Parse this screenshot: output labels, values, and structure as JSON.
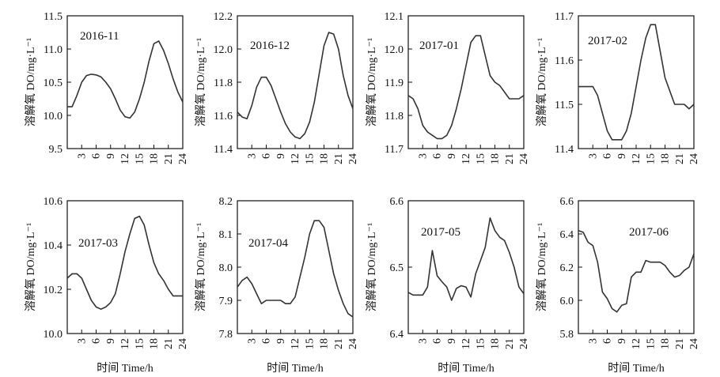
{
  "chart_data": [
    {
      "type": "line",
      "title": "2016-11",
      "ylabel": "溶解氧 DO/mg·L⁻¹",
      "xlabel": "",
      "xlim": [
        0,
        24
      ],
      "ylim": [
        9.5,
        11.5
      ],
      "xticks": [
        "3",
        "6",
        "9",
        "12",
        "15",
        "18",
        "21",
        "24"
      ],
      "yticks": [
        "9.5",
        "10.0",
        "10.5",
        "11.0",
        "11.5"
      ],
      "series": [
        {
          "x": [
            0,
            1,
            2,
            3,
            4,
            5,
            6,
            7,
            8,
            9,
            10,
            11,
            12,
            13,
            14,
            15,
            16,
            17,
            18,
            19,
            20,
            21,
            22,
            23,
            24
          ],
          "values": [
            10.13,
            10.13,
            10.3,
            10.5,
            10.6,
            10.62,
            10.61,
            10.58,
            10.5,
            10.4,
            10.25,
            10.08,
            9.98,
            9.96,
            10.05,
            10.25,
            10.5,
            10.82,
            11.08,
            11.12,
            10.98,
            10.78,
            10.55,
            10.35,
            10.2
          ]
        }
      ]
    },
    {
      "type": "line",
      "title": "2016-12",
      "ylabel": "溶解氧 DO/mg·L⁻¹",
      "xlabel": "",
      "xlim": [
        0,
        24
      ],
      "ylim": [
        11.4,
        12.2
      ],
      "xticks": [
        "3",
        "6",
        "9",
        "12",
        "15",
        "18",
        "21",
        "24"
      ],
      "yticks": [
        "11.4",
        "11.6",
        "11.8",
        "12.0",
        "12.2"
      ],
      "series": [
        {
          "x": [
            0,
            1,
            2,
            3,
            4,
            5,
            6,
            7,
            8,
            9,
            10,
            11,
            12,
            13,
            14,
            15,
            16,
            17,
            18,
            19,
            20,
            21,
            22,
            23,
            24
          ],
          "values": [
            11.62,
            11.59,
            11.58,
            11.66,
            11.77,
            11.83,
            11.83,
            11.78,
            11.7,
            11.62,
            11.55,
            11.5,
            11.47,
            11.46,
            11.49,
            11.56,
            11.68,
            11.85,
            12.02,
            12.1,
            12.09,
            12.0,
            11.84,
            11.72,
            11.64
          ]
        }
      ]
    },
    {
      "type": "line",
      "title": "2017-01",
      "ylabel": "溶解氧 DO/mg·L⁻¹",
      "xlabel": "",
      "xlim": [
        0,
        24
      ],
      "ylim": [
        11.7,
        12.1
      ],
      "xticks": [
        "3",
        "6",
        "9",
        "12",
        "15",
        "18",
        "21",
        "24"
      ],
      "yticks": [
        "11.7",
        "11.8",
        "11.9",
        "12.0",
        "12.1"
      ],
      "series": [
        {
          "x": [
            0,
            1,
            2,
            3,
            4,
            5,
            6,
            7,
            8,
            9,
            10,
            11,
            12,
            13,
            14,
            15,
            16,
            17,
            18,
            19,
            20,
            21,
            22,
            23,
            24
          ],
          "values": [
            11.86,
            11.85,
            11.82,
            11.77,
            11.75,
            11.74,
            11.73,
            11.73,
            11.74,
            11.77,
            11.82,
            11.88,
            11.95,
            12.02,
            12.04,
            12.04,
            11.98,
            11.92,
            11.9,
            11.89,
            11.87,
            11.85,
            11.85,
            11.85,
            11.86
          ]
        }
      ]
    },
    {
      "type": "line",
      "title": "2017-02",
      "ylabel": "溶解氧 DO/mg·L⁻¹",
      "xlabel": "",
      "xlim": [
        0,
        24
      ],
      "ylim": [
        11.4,
        11.7
      ],
      "xticks": [
        "3",
        "6",
        "9",
        "12",
        "15",
        "18",
        "21",
        "24"
      ],
      "yticks": [
        "11.4",
        "11.5",
        "11.6",
        "11.7"
      ],
      "series": [
        {
          "x": [
            0,
            1,
            2,
            3,
            4,
            5,
            6,
            7,
            8,
            9,
            10,
            11,
            12,
            13,
            14,
            15,
            16,
            17,
            18,
            19,
            20,
            21,
            22,
            23,
            24
          ],
          "values": [
            11.54,
            11.54,
            11.54,
            11.54,
            11.52,
            11.48,
            11.44,
            11.42,
            11.42,
            11.42,
            11.44,
            11.48,
            11.54,
            11.6,
            11.65,
            11.68,
            11.68,
            11.62,
            11.56,
            11.53,
            11.5,
            11.5,
            11.5,
            11.49,
            11.5
          ]
        }
      ]
    },
    {
      "type": "line",
      "title": "2017-03",
      "ylabel": "溶解氧 DO/mg·L⁻¹",
      "xlabel": "时间 Time/h",
      "xlim": [
        0,
        24
      ],
      "ylim": [
        10.0,
        10.6
      ],
      "xticks": [
        "3",
        "6",
        "9",
        "12",
        "15",
        "18",
        "21",
        "24"
      ],
      "yticks": [
        "10.0",
        "10.2",
        "10.4",
        "10.6"
      ],
      "series": [
        {
          "x": [
            0,
            1,
            2,
            3,
            4,
            5,
            6,
            7,
            8,
            9,
            10,
            11,
            12,
            13,
            14,
            15,
            16,
            17,
            18,
            19,
            20,
            21,
            22,
            23,
            24
          ],
          "values": [
            10.25,
            10.27,
            10.27,
            10.25,
            10.2,
            10.15,
            10.12,
            10.11,
            10.12,
            10.14,
            10.18,
            10.27,
            10.37,
            10.45,
            10.52,
            10.53,
            10.49,
            10.4,
            10.32,
            10.27,
            10.24,
            10.2,
            10.17,
            10.17,
            10.17
          ]
        }
      ]
    },
    {
      "type": "line",
      "title": "2017-04",
      "ylabel": "溶解氧 DO/mg·L⁻¹",
      "xlabel": "时间 Time/h",
      "xlim": [
        0,
        24
      ],
      "ylim": [
        7.8,
        8.2
      ],
      "xticks": [
        "3",
        "6",
        "9",
        "12",
        "15",
        "18",
        "21",
        "24"
      ],
      "yticks": [
        "7.8",
        "7.9",
        "8.0",
        "8.1",
        "8.2"
      ],
      "series": [
        {
          "x": [
            0,
            1,
            2,
            3,
            4,
            5,
            6,
            7,
            8,
            9,
            10,
            11,
            12,
            13,
            14,
            15,
            16,
            17,
            18,
            19,
            20,
            21,
            22,
            23,
            24
          ],
          "values": [
            7.94,
            7.96,
            7.97,
            7.95,
            7.92,
            7.89,
            7.9,
            7.9,
            7.9,
            7.9,
            7.89,
            7.89,
            7.91,
            7.97,
            8.03,
            8.1,
            8.14,
            8.14,
            8.12,
            8.05,
            7.98,
            7.93,
            7.89,
            7.86,
            7.85
          ]
        }
      ]
    },
    {
      "type": "line",
      "title": "2017-05",
      "ylabel": "溶解氧 DO/mg·L⁻¹",
      "xlabel": "时间 Time/h",
      "xlim": [
        0,
        24
      ],
      "ylim": [
        6.4,
        6.6
      ],
      "xticks": [
        "3",
        "6",
        "9",
        "12",
        "15",
        "18",
        "21",
        "24"
      ],
      "yticks": [
        "6.4",
        "6.5",
        "6.6"
      ],
      "series": [
        {
          "x": [
            0,
            1,
            2,
            3,
            4,
            5,
            6,
            7,
            8,
            9,
            10,
            11,
            12,
            13,
            14,
            15,
            16,
            17,
            18,
            19,
            20,
            21,
            22,
            23,
            24
          ],
          "values": [
            6.462,
            6.458,
            6.458,
            6.458,
            6.47,
            6.525,
            6.487,
            6.478,
            6.47,
            6.45,
            6.468,
            6.472,
            6.47,
            6.455,
            6.49,
            6.51,
            6.53,
            6.574,
            6.555,
            6.545,
            6.54,
            6.522,
            6.5,
            6.47,
            6.46
          ]
        }
      ]
    },
    {
      "type": "line",
      "title": "2017-06",
      "ylabel": "溶解氧 DO/mg·L⁻¹",
      "xlabel": "时间 Time/h",
      "xlim": [
        0,
        24
      ],
      "ylim": [
        5.8,
        6.6
      ],
      "xticks": [
        "3",
        "6",
        "9",
        "12",
        "15",
        "18",
        "21",
        "24"
      ],
      "yticks": [
        "5.8",
        "6.0",
        "6.2",
        "6.4",
        "6.6"
      ],
      "series": [
        {
          "x": [
            0,
            1,
            2,
            3,
            4,
            5,
            6,
            7,
            8,
            9,
            10,
            11,
            12,
            13,
            14,
            15,
            16,
            17,
            18,
            19,
            20,
            21,
            22,
            23,
            24
          ],
          "values": [
            6.42,
            6.41,
            6.35,
            6.33,
            6.23,
            6.05,
            6.01,
            5.95,
            5.93,
            5.97,
            5.98,
            6.14,
            6.17,
            6.17,
            6.24,
            6.23,
            6.23,
            6.23,
            6.21,
            6.17,
            6.14,
            6.15,
            6.18,
            6.2,
            6.28
          ]
        }
      ]
    }
  ]
}
